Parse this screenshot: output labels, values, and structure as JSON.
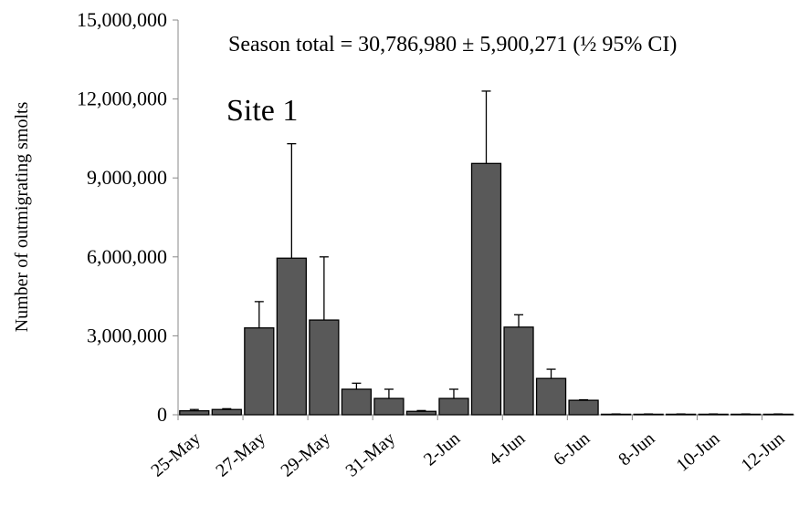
{
  "chart_data": {
    "type": "bar",
    "annotations": [
      "Season total = 30,786,980 ± 5,900,271 (½ 95% CI)",
      "Site 1"
    ],
    "y_label": "Number of outmigrating smolts",
    "categories": [
      "25-May",
      null,
      "27-May",
      null,
      "29-May",
      null,
      "31-May",
      null,
      "2-Jun",
      null,
      "4-Jun",
      null,
      "6-Jun",
      null,
      "8-Jun",
      null,
      "10-Jun",
      null,
      "12-Jun"
    ],
    "values": [
      150000,
      200000,
      3300000,
      5950000,
      3600000,
      970000,
      620000,
      130000,
      620000,
      9550000,
      3330000,
      1380000,
      550000,
      20000,
      20000,
      20000,
      20000,
      20000,
      20000
    ],
    "errors": [
      50000,
      30000,
      1000000,
      4350000,
      2400000,
      230000,
      350000,
      30000,
      350000,
      2750000,
      470000,
      350000,
      20000,
      10000,
      10000,
      10000,
      10000,
      10000,
      10000
    ],
    "color": "#595959",
    "ylim": [
      0,
      15000000
    ],
    "yticks": [
      0,
      {
        "value": 3000000,
        "label": "3,000,000"
      },
      {
        "value": 6000000,
        "label": "6,000,000"
      },
      {
        "value": 9000000,
        "label": "9,000,000"
      },
      {
        "value": 12000000,
        "label": "12,000,000"
      },
      {
        "value": 15000000,
        "label": "15,000,000"
      }
    ],
    "grid": false
  }
}
